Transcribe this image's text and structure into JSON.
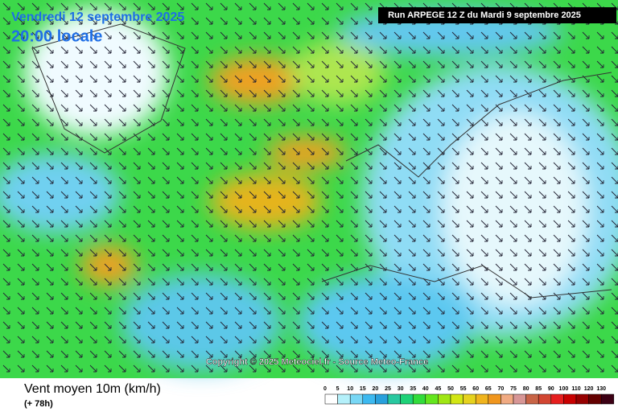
{
  "header": {
    "date": "Vendredi 12 septembre 2025",
    "time": "20:00 locale",
    "run": "Run ARPEGE 12 Z du Mardi 9 septembre 2025"
  },
  "copyright": "Copyright © 2025 Meteociel.fr - Source Meteo-France",
  "footer": {
    "title": "Vent moyen 10m (km/h)",
    "lead": "(+ 78h)"
  },
  "legend": {
    "labels": [
      "0",
      "5",
      "10",
      "15",
      "20",
      "25",
      "30",
      "35",
      "40",
      "45",
      "50",
      "55",
      "60",
      "65",
      "70",
      "75",
      "80",
      "85",
      "90",
      "100",
      "110",
      "120",
      "130"
    ],
    "colors": [
      "#ffffff",
      "#b4f0fa",
      "#78d7f5",
      "#3cb9f0",
      "#28a0dc",
      "#28c8a0",
      "#1ed278",
      "#32dc3c",
      "#64e61e",
      "#a0e614",
      "#d2e614",
      "#e6d21e",
      "#f0b41e",
      "#f0961e",
      "#f0aa82",
      "#d79696",
      "#c86446",
      "#d24632",
      "#e61e1e",
      "#c80000",
      "#960000",
      "#640000",
      "#3c0014"
    ]
  }
}
